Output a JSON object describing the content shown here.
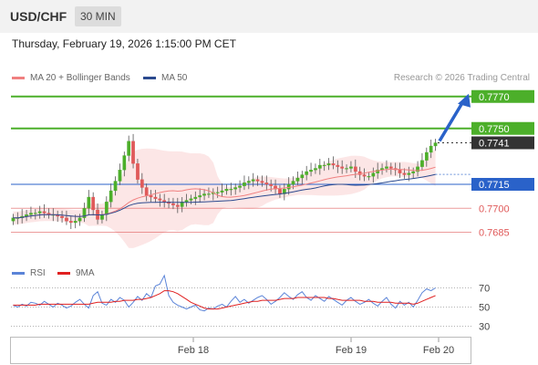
{
  "header": {
    "symbol": "USD/CHF",
    "timeframe": "30 MIN"
  },
  "datetime": "Thursday, February 19, 2026 1:15:00 PM CET",
  "legend": {
    "bb": "MA 20 + Bollinger Bands",
    "ma50": "MA 50"
  },
  "credit": "Research © 2026 Trading Central",
  "colors": {
    "up": "#4caf2a",
    "down": "#e05a5a",
    "pivot": "#2a62c9",
    "ma20": "#f08080",
    "ma50": "#2b4a8f",
    "current": "#333333",
    "bands": "#fce3e3",
    "rsi": "#5b84d8",
    "rsi_ma": "#e02020"
  },
  "rsi_legend": {
    "rsi": "RSI",
    "ma": "9MA"
  },
  "chart_data": [
    {
      "type": "line",
      "yrange": [
        0.7675,
        0.7775
      ],
      "x_ticks": [
        "Feb 18",
        "Feb 19",
        "Feb 20"
      ],
      "levels": [
        {
          "label": "0.7770",
          "value": 0.777,
          "kind": "resistance"
        },
        {
          "label": "0.7750",
          "value": 0.775,
          "kind": "resistance"
        },
        {
          "label": "0.7741",
          "value": 0.7741,
          "kind": "current"
        },
        {
          "label": "0.7715",
          "value": 0.7715,
          "kind": "pivot"
        },
        {
          "label": "0.7700",
          "value": 0.77,
          "kind": "support"
        },
        {
          "label": "0.7685",
          "value": 0.7685,
          "kind": "support"
        }
      ],
      "series": [
        {
          "values": [
            0.7694,
            0.7694,
            0.7695,
            0.7696,
            0.7697,
            0.7697,
            0.7698,
            0.7697,
            0.7696,
            0.7696,
            0.7695,
            0.7694,
            0.7692,
            0.7691,
            0.7692,
            0.7694,
            0.77,
            0.7707,
            0.7699,
            0.7693,
            0.7696,
            0.7704,
            0.7711,
            0.7717,
            0.7724,
            0.7733,
            0.7742,
            0.7728,
            0.7718,
            0.7713,
            0.7708,
            0.7707,
            0.7706,
            0.7705,
            0.7704,
            0.7703,
            0.7702,
            0.7701,
            0.7704,
            0.7705,
            0.7706,
            0.7707,
            0.7708,
            0.7709,
            0.7709,
            0.771,
            0.771,
            0.7711,
            0.7712,
            0.7712,
            0.7713,
            0.7714,
            0.7716,
            0.7717,
            0.7718,
            0.7717,
            0.7716,
            0.7715,
            0.7714,
            0.7712,
            0.7709,
            0.7712,
            0.7715,
            0.7717,
            0.7719,
            0.7721,
            0.7723,
            0.7724,
            0.7725,
            0.7727,
            0.7727,
            0.7728,
            0.7727,
            0.7726,
            0.7725,
            0.7725,
            0.7726,
            0.7723,
            0.7721,
            0.772,
            0.772,
            0.7722,
            0.7724,
            0.7725,
            0.7726,
            0.7725,
            0.7724,
            0.7722,
            0.7721,
            0.7722,
            0.7723,
            0.7726,
            0.773,
            0.7735,
            0.7739,
            0.7741
          ]
        }
      ]
    },
    {
      "type": "line",
      "yrange": [
        20,
        80
      ],
      "y_ticks": [
        70,
        50,
        30
      ],
      "x_ticks": [
        "Feb 18",
        "Feb 19",
        "Feb 20"
      ],
      "series": [
        {
          "name": "RSI",
          "values": [
            52,
            50,
            53,
            51,
            55,
            54,
            52,
            56,
            53,
            50,
            54,
            52,
            49,
            51,
            55,
            58,
            53,
            49,
            62,
            66,
            54,
            52,
            58,
            55,
            60,
            57,
            50,
            55,
            61,
            57,
            64,
            60,
            72,
            74,
            83,
            62,
            55,
            52,
            50,
            48,
            50,
            52,
            47,
            46,
            49,
            48,
            51,
            53,
            50,
            56,
            61,
            55,
            58,
            54,
            57,
            60,
            62,
            58,
            53,
            56,
            60,
            65,
            61,
            58,
            63,
            66,
            60,
            57,
            62,
            59,
            56,
            61,
            58,
            55,
            52,
            57,
            60,
            56,
            53,
            55,
            58,
            54,
            51,
            56,
            60,
            53,
            49,
            56,
            52,
            55,
            50,
            57,
            65,
            69,
            67,
            70
          ]
        },
        {
          "name": "9MA",
          "values": [
            52,
            52,
            52,
            52,
            52,
            52,
            53,
            53,
            53,
            53,
            53,
            53,
            53,
            53,
            53,
            53,
            53,
            53,
            54,
            55,
            55,
            55,
            55,
            56,
            56,
            57,
            57,
            57,
            58,
            58,
            59,
            60,
            62,
            64,
            67,
            67,
            66,
            64,
            61,
            58,
            55,
            53,
            51,
            49,
            48,
            48,
            48,
            49,
            50,
            51,
            52,
            53,
            54,
            55,
            56,
            56,
            57,
            57,
            57,
            57,
            58,
            59,
            59,
            59,
            60,
            60,
            60,
            60,
            60,
            60,
            60,
            59,
            59,
            58,
            57,
            57,
            57,
            57,
            57,
            56,
            56,
            56,
            55,
            55,
            55,
            55,
            54,
            54,
            54,
            54,
            53,
            54,
            56,
            58,
            60,
            62
          ]
        }
      ]
    }
  ]
}
